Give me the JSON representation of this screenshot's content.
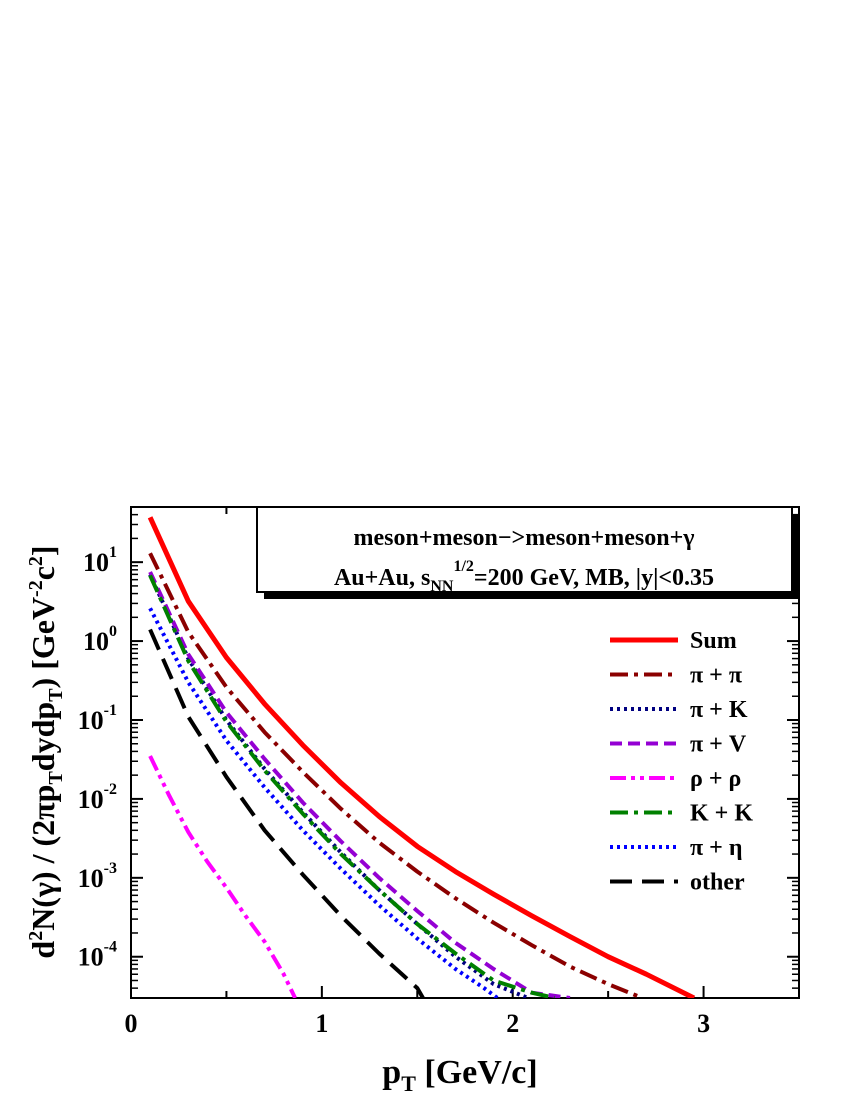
{
  "chart_data": {
    "type": "line",
    "xlabel": "p",
    "xlabel_sub": "T",
    "xlabel_unit": " [GeV/c]",
    "ylabel_parts": [
      "d",
      "2",
      "N(γ) / (2πp",
      "T",
      "dydp",
      "T",
      ")  [GeV",
      "-2",
      "c",
      "2",
      "]"
    ],
    "xlim": [
      0,
      3.5
    ],
    "ylim": [
      3e-05,
      50
    ],
    "log_y": true,
    "x_ticks": [
      {
        "value": 0,
        "label": "0"
      },
      {
        "value": 1,
        "label": "1"
      },
      {
        "value": 2,
        "label": "2"
      },
      {
        "value": 3,
        "label": "3"
      }
    ],
    "y_ticks": [
      {
        "value": 10,
        "base": "10",
        "exp": "1"
      },
      {
        "value": 1,
        "base": "10",
        "exp": "0"
      },
      {
        "value": 0.1,
        "base": "10",
        "exp": "-1"
      },
      {
        "value": 0.01,
        "base": "10",
        "exp": "-2"
      },
      {
        "value": 0.001,
        "base": "10",
        "exp": "-3"
      },
      {
        "value": 0.0001,
        "base": "10",
        "exp": "-4"
      }
    ],
    "annotation": {
      "line1": "meson+meson−>meson+meson+γ",
      "line2_parts": [
        "Au+Au, s",
        "NN",
        "1/2",
        "=200 GeV, MB, |y|<0.35"
      ]
    },
    "legend_position": "right",
    "series": [
      {
        "name": "Sum",
        "color": "#ff0000",
        "style": "solid",
        "points": [
          [
            0.1,
            37
          ],
          [
            0.3,
            3.2
          ],
          [
            0.5,
            0.62
          ],
          [
            0.7,
            0.16
          ],
          [
            0.9,
            0.048
          ],
          [
            1.1,
            0.016
          ],
          [
            1.3,
            0.006
          ],
          [
            1.5,
            0.0025
          ],
          [
            1.7,
            0.0012
          ],
          [
            1.9,
            0.00062
          ],
          [
            2.1,
            0.00033
          ],
          [
            2.3,
            0.00018
          ],
          [
            2.5,
            0.0001
          ],
          [
            2.7,
            6e-05
          ],
          [
            2.95,
            3e-05
          ]
        ]
      },
      {
        "name": "π + π",
        "color": "#8b0000",
        "style": "dashdot",
        "points": [
          [
            0.1,
            13
          ],
          [
            0.3,
            1.3
          ],
          [
            0.5,
            0.26
          ],
          [
            0.7,
            0.07
          ],
          [
            0.9,
            0.022
          ],
          [
            1.1,
            0.0075
          ],
          [
            1.3,
            0.0028
          ],
          [
            1.5,
            0.0012
          ],
          [
            1.7,
            0.00055
          ],
          [
            1.9,
            0.00027
          ],
          [
            2.1,
            0.00014
          ],
          [
            2.3,
            7.5e-05
          ],
          [
            2.5,
            4.5e-05
          ],
          [
            2.68,
            3e-05
          ]
        ]
      },
      {
        "name": "π + K",
        "color": "#000080",
        "style": "dot",
        "points": [
          [
            0.1,
            7
          ],
          [
            0.3,
            0.6
          ],
          [
            0.5,
            0.1
          ],
          [
            0.7,
            0.024
          ],
          [
            0.9,
            0.0068
          ],
          [
            1.1,
            0.0021
          ],
          [
            1.3,
            0.0007
          ],
          [
            1.5,
            0.00026
          ],
          [
            1.7,
            0.0001
          ],
          [
            1.9,
            4.5e-05
          ],
          [
            2.08,
            3e-05
          ]
        ]
      },
      {
        "name": "π + V",
        "color": "#9400d3",
        "style": "dash",
        "points": [
          [
            0.1,
            7.5
          ],
          [
            0.3,
            0.68
          ],
          [
            0.5,
            0.125
          ],
          [
            0.7,
            0.032
          ],
          [
            0.9,
            0.009
          ],
          [
            1.1,
            0.0029
          ],
          [
            1.3,
            0.001
          ],
          [
            1.5,
            0.00038
          ],
          [
            1.7,
            0.00015
          ],
          [
            1.9,
            7e-05
          ],
          [
            2.1,
            3.5e-05
          ],
          [
            2.3,
            3e-05
          ]
        ]
      },
      {
        "name": "ρ + ρ",
        "color": "#ff00ff",
        "style": "dashdotdot",
        "points": [
          [
            0.1,
            0.035
          ],
          [
            0.2,
            0.011
          ],
          [
            0.3,
            0.0038
          ],
          [
            0.4,
            0.0016
          ],
          [
            0.5,
            0.00075
          ],
          [
            0.6,
            0.00033
          ],
          [
            0.7,
            0.000155
          ],
          [
            0.8,
            6e-05
          ],
          [
            0.86,
            3e-05
          ]
        ]
      },
      {
        "name": "K + K",
        "color": "#008000",
        "style": "dashdot",
        "points": [
          [
            0.1,
            6.8
          ],
          [
            0.3,
            0.56
          ],
          [
            0.5,
            0.095
          ],
          [
            0.7,
            0.023
          ],
          [
            0.9,
            0.0065
          ],
          [
            1.1,
            0.002
          ],
          [
            1.3,
            0.0007
          ],
          [
            1.5,
            0.00026
          ],
          [
            1.7,
            0.00011
          ],
          [
            1.9,
            5e-05
          ],
          [
            2.1,
            3.5e-05
          ],
          [
            2.22,
            3e-05
          ]
        ]
      },
      {
        "name": "π + η",
        "color": "#0000ff",
        "style": "dot",
        "points": [
          [
            0.1,
            2.6
          ],
          [
            0.3,
            0.3
          ],
          [
            0.5,
            0.055
          ],
          [
            0.7,
            0.014
          ],
          [
            0.9,
            0.004
          ],
          [
            1.1,
            0.0013
          ],
          [
            1.3,
            0.00045
          ],
          [
            1.5,
            0.00017
          ],
          [
            1.7,
            7e-05
          ],
          [
            1.85,
            4e-05
          ],
          [
            1.92,
            3e-05
          ]
        ]
      },
      {
        "name": "other",
        "color": "#000000",
        "style": "longdash",
        "points": [
          [
            0.1,
            1.4
          ],
          [
            0.3,
            0.11
          ],
          [
            0.5,
            0.019
          ],
          [
            0.7,
            0.004
          ],
          [
            0.9,
            0.0011
          ],
          [
            1.1,
            0.00033
          ],
          [
            1.3,
            0.00011
          ],
          [
            1.5,
            4e-05
          ],
          [
            1.53,
            3e-05
          ]
        ]
      }
    ]
  }
}
